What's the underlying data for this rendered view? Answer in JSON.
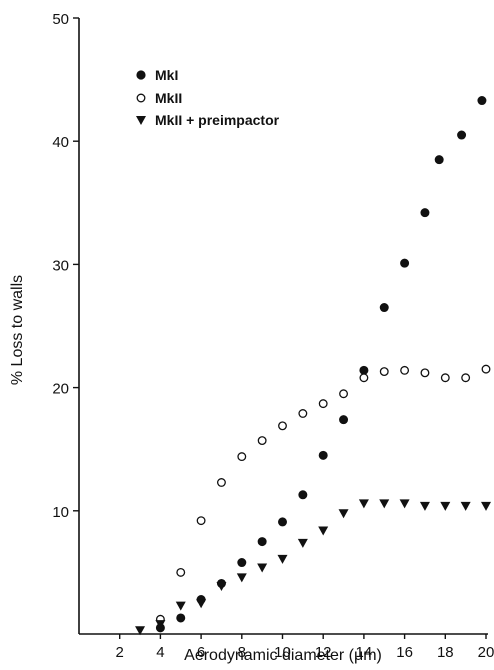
{
  "chart_data": {
    "type": "scatter",
    "title": "",
    "xlabel": "Aerodynamic diameter (μm)",
    "ylabel": "% Loss to walls",
    "xlim": [
      0,
      20
    ],
    "ylim": [
      0,
      50
    ],
    "xticks": [
      "2",
      "4",
      "6",
      "8",
      "10",
      "12",
      "14",
      "16",
      "18",
      "20"
    ],
    "yticks": [
      "10",
      "20",
      "30",
      "40",
      "50"
    ],
    "grid": false,
    "legend_position": "top-left",
    "series": [
      {
        "name": "MkI",
        "marker": "filled-circle",
        "points": [
          {
            "x": 4,
            "y": 0.5
          },
          {
            "x": 5,
            "y": 1.3
          },
          {
            "x": 6,
            "y": 2.8
          },
          {
            "x": 7,
            "y": 4.1
          },
          {
            "x": 8,
            "y": 5.8
          },
          {
            "x": 9,
            "y": 7.5
          },
          {
            "x": 10,
            "y": 9.1
          },
          {
            "x": 11,
            "y": 11.3
          },
          {
            "x": 12,
            "y": 14.5
          },
          {
            "x": 13,
            "y": 17.4
          },
          {
            "x": 14,
            "y": 21.4
          },
          {
            "x": 15,
            "y": 26.5
          },
          {
            "x": 16,
            "y": 30.1
          },
          {
            "x": 17,
            "y": 34.2
          },
          {
            "x": 17.7,
            "y": 38.5
          },
          {
            "x": 18.8,
            "y": 40.5
          },
          {
            "x": 19.8,
            "y": 43.3
          }
        ]
      },
      {
        "name": "MkII",
        "marker": "open-circle",
        "points": [
          {
            "x": 4,
            "y": 1.2
          },
          {
            "x": 5,
            "y": 5.0
          },
          {
            "x": 6,
            "y": 9.2
          },
          {
            "x": 7,
            "y": 12.3
          },
          {
            "x": 8,
            "y": 14.4
          },
          {
            "x": 9,
            "y": 15.7
          },
          {
            "x": 10,
            "y": 16.9
          },
          {
            "x": 11,
            "y": 17.9
          },
          {
            "x": 12,
            "y": 18.7
          },
          {
            "x": 13,
            "y": 19.5
          },
          {
            "x": 14,
            "y": 20.8
          },
          {
            "x": 15,
            "y": 21.3
          },
          {
            "x": 16,
            "y": 21.4
          },
          {
            "x": 17,
            "y": 21.2
          },
          {
            "x": 18,
            "y": 20.8
          },
          {
            "x": 19,
            "y": 20.8
          },
          {
            "x": 20,
            "y": 21.5
          }
        ]
      },
      {
        "name": "MkII + preimpactor",
        "marker": "filled-triangle-down",
        "points": [
          {
            "x": 3,
            "y": 0.3
          },
          {
            "x": 4,
            "y": 0.8
          },
          {
            "x": 5,
            "y": 2.3
          },
          {
            "x": 6,
            "y": 2.5
          },
          {
            "x": 7,
            "y": 3.9
          },
          {
            "x": 8,
            "y": 4.6
          },
          {
            "x": 9,
            "y": 5.4
          },
          {
            "x": 10,
            "y": 6.1
          },
          {
            "x": 11,
            "y": 7.4
          },
          {
            "x": 12,
            "y": 8.4
          },
          {
            "x": 13,
            "y": 9.8
          },
          {
            "x": 14,
            "y": 10.6
          },
          {
            "x": 15,
            "y": 10.6
          },
          {
            "x": 16,
            "y": 10.6
          },
          {
            "x": 17,
            "y": 10.4
          },
          {
            "x": 18,
            "y": 10.4
          },
          {
            "x": 19,
            "y": 10.4
          },
          {
            "x": 20,
            "y": 10.4
          }
        ]
      }
    ]
  },
  "legend": {
    "entries": [
      "MkI",
      "MkII",
      "MkII + preimpactor"
    ]
  }
}
